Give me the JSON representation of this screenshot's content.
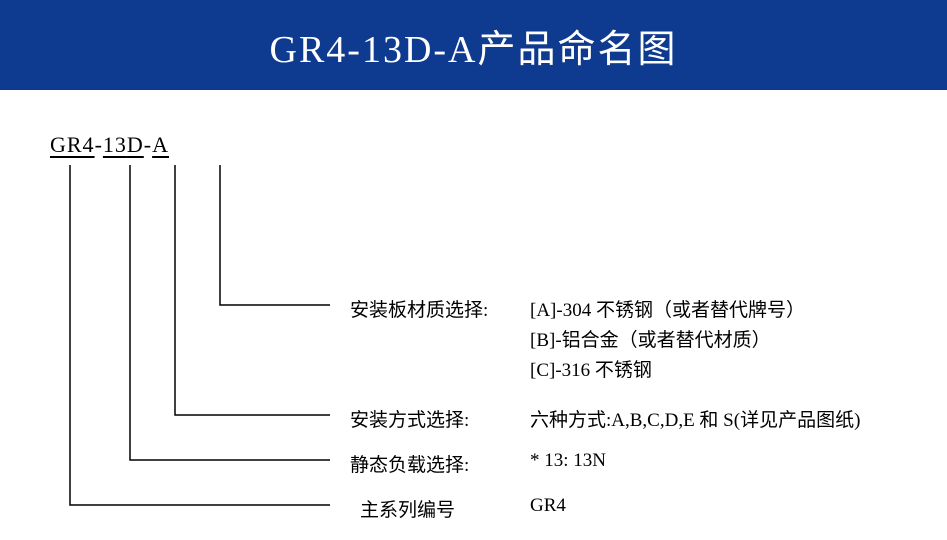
{
  "banner": {
    "title": "GR4-13D-A产品命名图",
    "bg_color": "#0e3a8f",
    "text_color": "#ffffff"
  },
  "code": {
    "seg1": "GR4",
    "dash1": "-",
    "seg2": "13",
    "gap": " ",
    "seg3": "D",
    "dash2": "-",
    "seg4": "A"
  },
  "rows": {
    "material": {
      "label": "安装板材质选择:",
      "line_a": "[A]-304 不锈钢（或者替代牌号）",
      "line_b": "[B]-铝合金（或者替代材质）",
      "line_c": "[C]-316 不锈钢"
    },
    "mount": {
      "label": "安装方式选择:",
      "value": "六种方式:A,B,C,D,E 和 S(详见产品图纸)"
    },
    "load": {
      "label": "静态负载选择:",
      "value": "* 13: 13N"
    },
    "series": {
      "label": "主系列编号",
      "value": "GR4"
    }
  },
  "diagram": {
    "text_color": "#000000",
    "line_color": "#000000",
    "line_width": 1.5,
    "segments": {
      "seg1_x": 70,
      "seg2_x": 130,
      "seg3_x": 175,
      "seg4_x": 220
    },
    "drop_top_y": 75,
    "row_y": {
      "material": 215,
      "mount": 325,
      "load": 370,
      "series": 415
    },
    "elbow_right_x": 330
  }
}
